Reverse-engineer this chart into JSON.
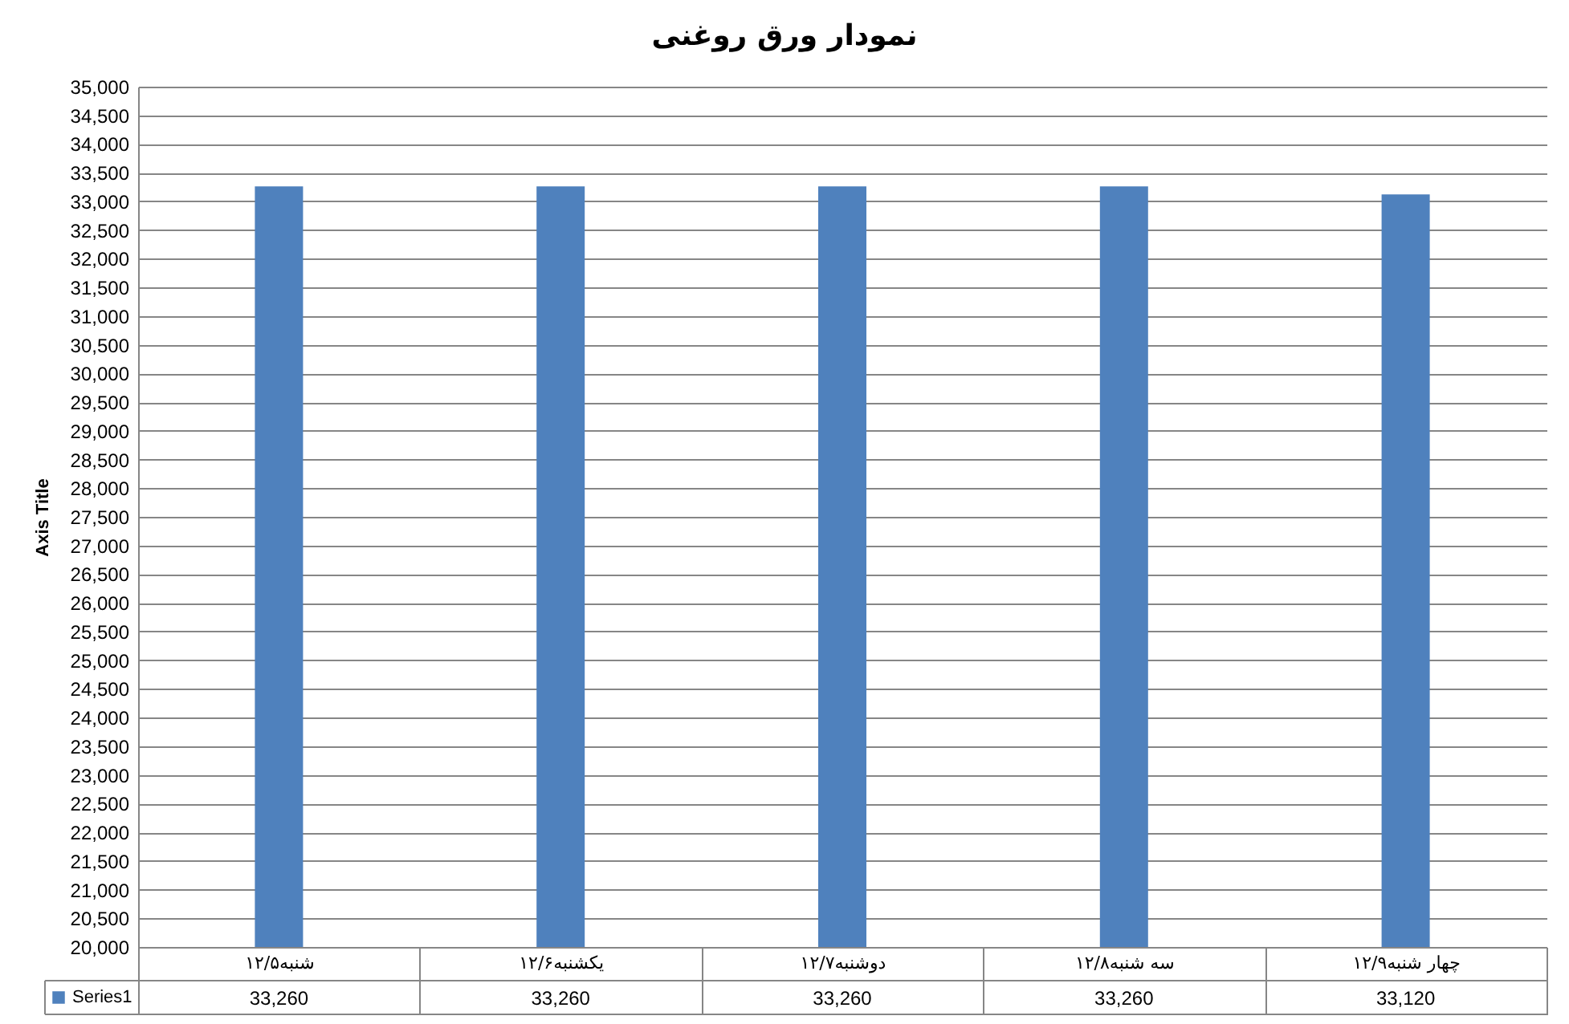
{
  "chart_data": {
    "type": "bar",
    "title": "نمودار ورق روغنی",
    "ylabel": "Axis Title",
    "categories": [
      "شنبه۱۲/۵",
      "یکشنبه۱۲/۶",
      "دوشنبه۱۲/۷",
      "سه شنبه۱۲/۸",
      "چهار شنبه۱۲/۹"
    ],
    "series": [
      {
        "name": "Series1",
        "color": "#4f81bd",
        "values": [
          33260,
          33260,
          33260,
          33260,
          33120
        ],
        "value_labels": [
          "33,260",
          "33,260",
          "33,260",
          "33,260",
          "33,120"
        ]
      }
    ],
    "ylim": [
      20000,
      35000
    ],
    "yticks": [
      {
        "value": 20000,
        "label": "20,000"
      },
      {
        "value": 20500,
        "label": "20,500"
      },
      {
        "value": 21000,
        "label": "21,000"
      },
      {
        "value": 21500,
        "label": "21,500"
      },
      {
        "value": 22000,
        "label": "22,000"
      },
      {
        "value": 22500,
        "label": "22,500"
      },
      {
        "value": 23000,
        "label": "23,000"
      },
      {
        "value": 23500,
        "label": "23,500"
      },
      {
        "value": 24000,
        "label": "24,000"
      },
      {
        "value": 24500,
        "label": "24,500"
      },
      {
        "value": 25000,
        "label": "25,000"
      },
      {
        "value": 25500,
        "label": "25,500"
      },
      {
        "value": 26000,
        "label": "26,000"
      },
      {
        "value": 26500,
        "label": "26,500"
      },
      {
        "value": 27000,
        "label": "27,000"
      },
      {
        "value": 27500,
        "label": "27,500"
      },
      {
        "value": 28000,
        "label": "28,000"
      },
      {
        "value": 28500,
        "label": "28,500"
      },
      {
        "value": 29000,
        "label": "29,000"
      },
      {
        "value": 29500,
        "label": "29,500"
      },
      {
        "value": 30000,
        "label": "30,000"
      },
      {
        "value": 30500,
        "label": "30,500"
      },
      {
        "value": 31000,
        "label": "31,000"
      },
      {
        "value": 31500,
        "label": "31,500"
      },
      {
        "value": 32000,
        "label": "32,000"
      },
      {
        "value": 32500,
        "label": "32,500"
      },
      {
        "value": 33000,
        "label": "33,000"
      },
      {
        "value": 33500,
        "label": "33,500"
      },
      {
        "value": 34000,
        "label": "34,000"
      },
      {
        "value": 34500,
        "label": "34,500"
      },
      {
        "value": 35000,
        "label": "35,000"
      }
    ],
    "grid": "y",
    "legend": "bottom"
  }
}
